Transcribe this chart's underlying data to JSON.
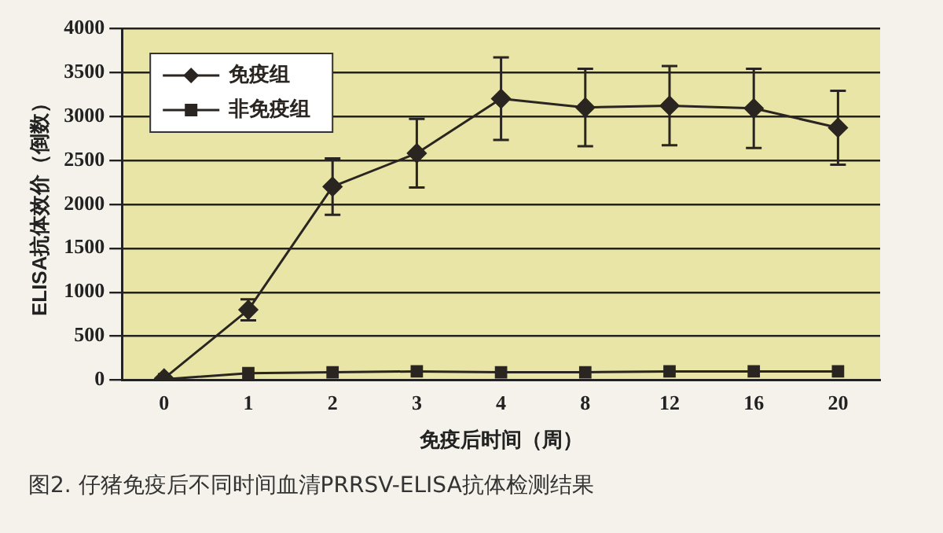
{
  "chart_data": {
    "type": "line",
    "xlabel": "免疫后时间（周）",
    "ylabel": "ELISA抗体效价（倒数）",
    "categories": [
      "0",
      "1",
      "2",
      "3",
      "4",
      "8",
      "12",
      "16",
      "20"
    ],
    "series": [
      {
        "name": "免疫组",
        "color": "#2a2520",
        "marker": "diamond",
        "values": [
          20,
          800,
          2200,
          2580,
          3200,
          3100,
          3120,
          3090,
          2870
        ],
        "errors": [
          null,
          120,
          320,
          390,
          470,
          440,
          450,
          450,
          420
        ]
      },
      {
        "name": "非免疫组",
        "color": "#2a2520",
        "marker": "square",
        "values": [
          10,
          80,
          90,
          100,
          90,
          90,
          100,
          100,
          100
        ]
      }
    ],
    "ylim": [
      0,
      4000
    ],
    "yticks": [
      0,
      500,
      1000,
      1500,
      2000,
      2500,
      3000,
      3500,
      4000
    ],
    "grid": "y",
    "legend": "top left",
    "annotations": [
      "图2. 仔猪免疫后不同时间血清PRRSV-ELISA抗体检测结果"
    ]
  }
}
